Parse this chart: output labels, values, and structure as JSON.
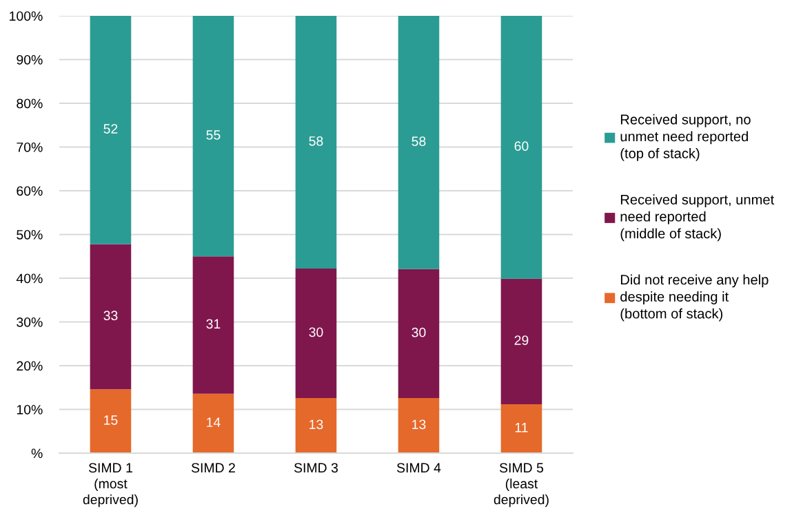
{
  "chart_data": {
    "type": "bar",
    "stacked": true,
    "categories": [
      "SIMD 1\n(most\ndeprived)",
      "SIMD 2",
      "SIMD 3",
      "SIMD 4",
      "SIMD 5\n(least\ndeprived)"
    ],
    "series": [
      {
        "name": "Did not receive any help\ndespite needing it\n(bottom of stack)",
        "color": "#e5692b",
        "values": [
          14.6,
          13.6,
          12.6,
          12.6,
          11.2
        ],
        "value_labels": [
          "15",
          "14",
          "13",
          "13",
          "11"
        ]
      },
      {
        "name": "Received support, unmet\nneed reported\n(middle of stack)",
        "color": "#7f174d",
        "values": [
          33.2,
          31.4,
          29.6,
          29.5,
          28.7
        ],
        "value_labels": [
          "33",
          "31",
          "30",
          "30",
          "29"
        ]
      },
      {
        "name": "Received support, no\nunmet need reported\n(top of stack)",
        "color": "#2b9c93",
        "values": [
          52.2,
          55.0,
          57.8,
          57.9,
          60.1
        ],
        "value_labels": [
          "52",
          "55",
          "58",
          "58",
          "60"
        ]
      }
    ],
    "ylim": [
      0,
      100
    ],
    "yticks": [
      {
        "value": 0,
        "label": "%"
      },
      {
        "value": 10,
        "label": "10%"
      },
      {
        "value": 20,
        "label": "20%"
      },
      {
        "value": 30,
        "label": "30%"
      },
      {
        "value": 40,
        "label": "40%"
      },
      {
        "value": 50,
        "label": "50%"
      },
      {
        "value": 60,
        "label": "60%"
      },
      {
        "value": 70,
        "label": "70%"
      },
      {
        "value": 80,
        "label": "80%"
      },
      {
        "value": 90,
        "label": "90%"
      },
      {
        "value": 100,
        "label": "100%"
      }
    ],
    "grid": "y",
    "legend": "right"
  }
}
